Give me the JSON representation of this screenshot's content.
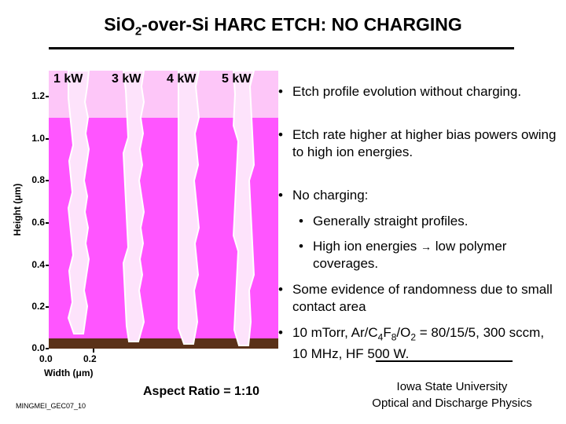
{
  "title": {
    "prefix": "Si",
    "sub": "O",
    "sub2": "2",
    "rest": "-over-Si HARC ETCH: NO CHARGING"
  },
  "plot": {
    "y_axis_label": "Height (μm)",
    "y_ticks": [
      "1.2",
      "1.0",
      "0.8",
      "0.6",
      "0.4",
      "0.2",
      "0.0"
    ],
    "x_ticks": [
      "0.0",
      "0.2"
    ],
    "x_axis_label": "Width (μm)",
    "columns": [
      "1 kW",
      "3 kW",
      "4 kW",
      "5 kW"
    ],
    "colors": {
      "oxide": "#ff55ff",
      "trench": "#fde3fb",
      "silicon": "#5a3118",
      "header": "#fdc6f8"
    }
  },
  "bullets": [
    {
      "level": 1,
      "text": "Etch profile evolution without charging."
    },
    {
      "level": 1,
      "text": "Etch rate higher at higher bias powers owing to high ion energies."
    },
    {
      "level": 1,
      "text": "No charging:"
    },
    {
      "level": 2,
      "text": "Generally straight profiles."
    },
    {
      "level": 2,
      "text": "High ion energies → low polymer coverages."
    },
    {
      "level": 1,
      "text": "Some evidence of randomness due to small contact area"
    },
    {
      "level": 1,
      "text": "10 mTorr, Ar/C4F8/O2 = 80/15/5, 300 sccm, 10 MHz, HF 500 W."
    }
  ],
  "bullet_glyph": "•",
  "aspect_ratio": "Aspect Ratio = 1:10",
  "footer_id": "MINGMEI_GEC07_10",
  "affiliation": {
    "line1": "Iowa State University",
    "line2": "Optical and Discharge Physics"
  }
}
